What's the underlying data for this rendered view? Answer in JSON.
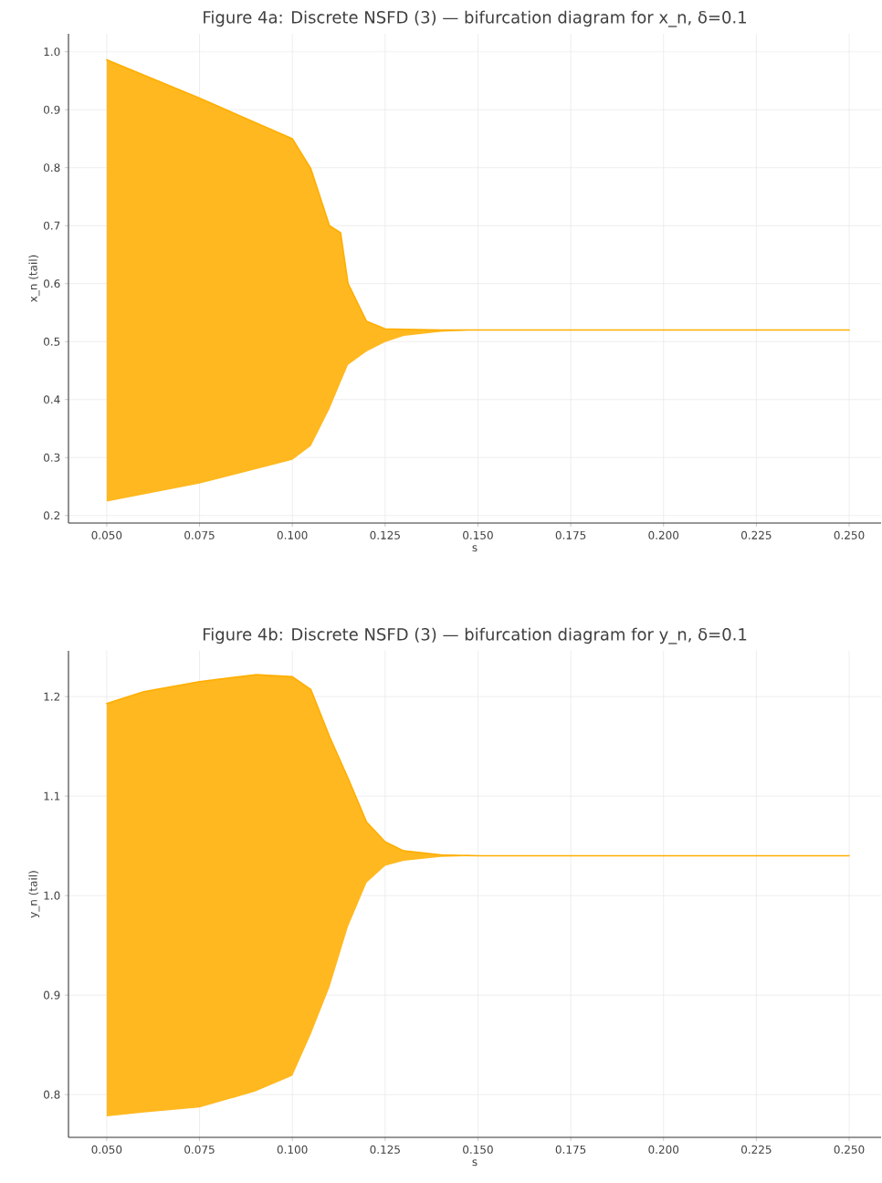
{
  "chart_data": [
    {
      "type": "line",
      "title": "Figure 4a: Discrete NSFD (3) — bifurcation diagram for x_n, δ=0.1",
      "xlabel": "s",
      "ylabel": "x_n (tail)",
      "x": [
        0.05,
        0.075,
        0.1,
        0.105,
        0.11,
        0.113,
        0.115,
        0.12,
        0.125,
        0.13,
        0.14,
        0.15,
        0.2,
        0.25
      ],
      "series": [
        {
          "color": "#ffae00",
          "values": [
            0.986,
            0.92,
            0.85,
            0.798,
            0.7,
            0.688,
            0.6,
            0.535,
            0.522,
            0.521,
            0.52,
            0.52,
            0.52,
            0.52
          ],
          "upper": [
            0.986,
            0.92,
            0.85,
            0.798,
            0.7,
            0.688,
            0.6,
            0.535,
            0.522,
            0.521,
            0.52,
            0.52,
            0.52,
            0.52
          ],
          "lower": [
            0.224,
            0.255,
            0.296,
            0.32,
            0.384,
            0.43,
            0.46,
            0.483,
            0.499,
            0.51,
            0.517,
            0.52,
            0.52,
            0.52
          ]
        }
      ],
      "xlim": [
        0.0397,
        0.2586
      ],
      "ylim": [
        0.187,
        1.031
      ],
      "xticks": [
        {
          "value": 0.05,
          "label": "0.050"
        },
        {
          "value": 0.075,
          "label": "0.075"
        },
        {
          "value": 0.1,
          "label": "0.100"
        },
        {
          "value": 0.125,
          "label": "0.125"
        },
        {
          "value": 0.15,
          "label": "0.150"
        },
        {
          "value": 0.175,
          "label": "0.175"
        },
        {
          "value": 0.2,
          "label": "0.200"
        },
        {
          "value": 0.225,
          "label": "0.225"
        },
        {
          "value": 0.25,
          "label": "0.250"
        }
      ],
      "yticks": [
        0.2,
        0.3,
        0.4,
        0.5,
        0.6,
        0.7,
        0.8,
        0.9,
        {
          "value": 1.0,
          "label": "1.0"
        }
      ],
      "grid": true
    },
    {
      "type": "line",
      "title": "Figure 4b: Discrete NSFD (3) — bifurcation diagram for y_n, δ=0.1",
      "xlabel": "s",
      "ylabel": "y_n (tail)",
      "x": [
        0.05,
        0.06,
        0.075,
        0.09,
        0.1,
        0.105,
        0.11,
        0.115,
        0.12,
        0.125,
        0.13,
        0.14,
        0.15,
        0.2,
        0.25
      ],
      "series": [
        {
          "color": "#ffae00",
          "values": [
            1.193,
            1.205,
            1.215,
            1.222,
            1.22,
            1.207,
            1.16,
            1.118,
            1.074,
            1.054,
            1.045,
            1.041,
            1.04,
            1.04,
            1.04
          ],
          "upper": [
            1.193,
            1.205,
            1.215,
            1.222,
            1.22,
            1.207,
            1.16,
            1.118,
            1.074,
            1.054,
            1.045,
            1.041,
            1.04,
            1.04,
            1.04
          ],
          "lower": [
            0.778,
            0.782,
            0.787,
            0.803,
            0.819,
            0.861,
            0.908,
            0.969,
            1.013,
            1.03,
            1.035,
            1.039,
            1.04,
            1.04,
            1.04
          ]
        }
      ],
      "xlim": [
        0.0397,
        0.2586
      ],
      "ylim": [
        0.757,
        1.246
      ],
      "xticks": [
        {
          "value": 0.05,
          "label": "0.050"
        },
        {
          "value": 0.075,
          "label": "0.075"
        },
        {
          "value": 0.1,
          "label": "0.100"
        },
        {
          "value": 0.125,
          "label": "0.125"
        },
        {
          "value": 0.15,
          "label": "0.150"
        },
        {
          "value": 0.175,
          "label": "0.175"
        },
        {
          "value": 0.2,
          "label": "0.200"
        },
        {
          "value": 0.225,
          "label": "0.225"
        },
        {
          "value": 0.25,
          "label": "0.250"
        }
      ],
      "yticks": [
        0.8,
        0.9,
        {
          "value": 1.0,
          "label": "1.0"
        },
        1.1,
        1.2
      ],
      "grid": true
    }
  ]
}
